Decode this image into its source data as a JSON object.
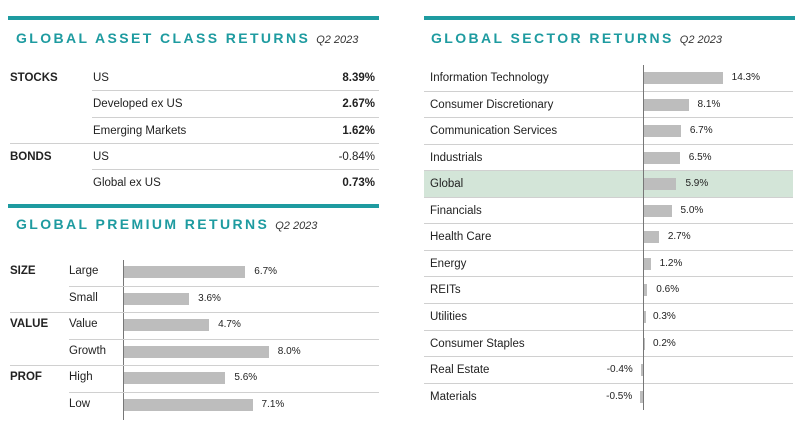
{
  "asset_panel": {
    "title": "GLOBAL ASSET CLASS RETURNS",
    "period": "Q2 2023",
    "rows": [
      {
        "group": "STOCKS",
        "label": "US",
        "value": "8.39%"
      },
      {
        "group": "",
        "label": "Developed ex US",
        "value": "2.67%"
      },
      {
        "group": "",
        "label": "Emerging Markets",
        "value": "1.62%"
      },
      {
        "group": "BONDS",
        "label": "US",
        "value": "-0.84%"
      },
      {
        "group": "",
        "label": "Global ex US",
        "value": "0.73%"
      }
    ]
  },
  "premium_panel": {
    "title": "GLOBAL PREMIUM RETURNS",
    "period": "Q2 2023"
  },
  "sector_panel": {
    "title": "GLOBAL SECTOR RETURNS",
    "period": "Q2 2023",
    "highlight": "Global"
  },
  "colors": {
    "accent": "#1e9ba0",
    "bar": "#bdbdbd",
    "highlight": "#d3e5d8"
  },
  "chart_data": [
    {
      "type": "bar",
      "title": "GLOBAL PREMIUM RETURNS",
      "subtitle": "Q2 2023",
      "orientation": "horizontal",
      "groups": [
        "SIZE",
        "",
        "VALUE",
        "",
        "PROF",
        ""
      ],
      "categories": [
        "Large",
        "Small",
        "Value",
        "Growth",
        "High",
        "Low"
      ],
      "values": [
        6.7,
        3.6,
        4.7,
        8.0,
        5.6,
        7.1
      ],
      "value_labels": [
        "6.7%",
        "3.6%",
        "4.7%",
        "8.0%",
        "5.6%",
        "7.1%"
      ],
      "xlim": [
        0,
        9
      ]
    },
    {
      "type": "bar",
      "title": "GLOBAL SECTOR RETURNS",
      "subtitle": "Q2 2023",
      "orientation": "horizontal",
      "categories": [
        "Information Technology",
        "Consumer Discretionary",
        "Communication Services",
        "Industrials",
        "Global",
        "Financials",
        "Health Care",
        "Energy",
        "REITs",
        "Utilities",
        "Consumer Staples",
        "Real Estate",
        "Materials"
      ],
      "values": [
        14.3,
        8.1,
        6.7,
        6.5,
        5.9,
        5.0,
        2.7,
        1.2,
        0.6,
        0.3,
        0.2,
        -0.4,
        -0.5
      ],
      "value_labels": [
        "14.3%",
        "8.1%",
        "6.7%",
        "6.5%",
        "5.9%",
        "5.0%",
        "2.7%",
        "1.2%",
        "0.6%",
        "0.3%",
        "0.2%",
        "-0.4%",
        "-0.5%"
      ],
      "xlim": [
        -1,
        16
      ]
    }
  ]
}
